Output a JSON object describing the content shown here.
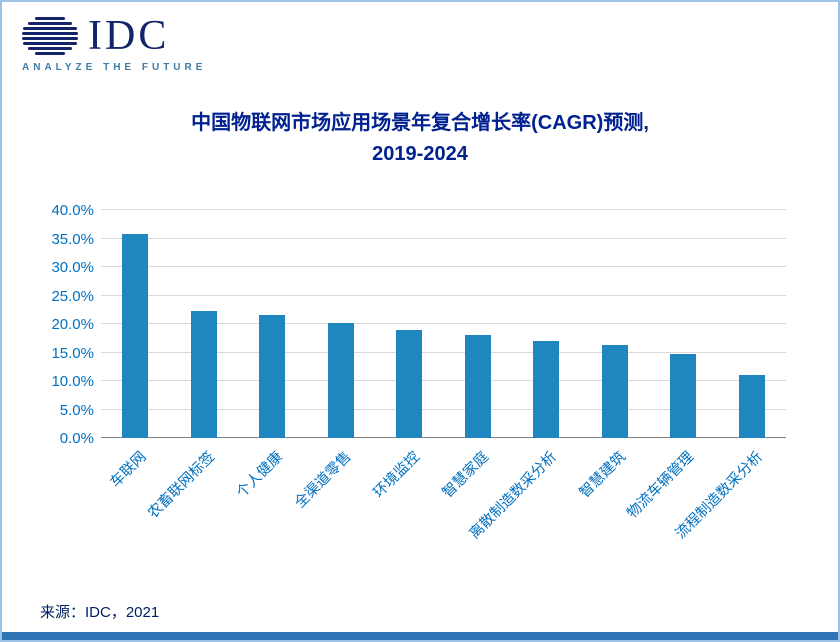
{
  "logo": {
    "text": "IDC",
    "tagline": "ANALYZE THE FUTURE"
  },
  "chart_data": {
    "type": "bar",
    "title_line1": "中国物联网市场应用场景年复合增长率(CAGR)预测,",
    "title_line2": "2019-2024",
    "categories": [
      "车联网",
      "农畜联网标签",
      "个人健康",
      "全渠道零售",
      "环境监控",
      "智慧家庭",
      "离散制造数采分析",
      "智慧建筑",
      "物流车辆管理",
      "流程制造数采分析"
    ],
    "values": [
      35.8,
      22.2,
      21.5,
      20.1,
      19.0,
      18.1,
      17.1,
      16.4,
      14.8,
      11.1
    ],
    "xlabel": "",
    "ylabel": "",
    "ylim": [
      0,
      40
    ],
    "yticks": [
      0,
      5,
      10,
      15,
      20,
      25,
      30,
      35,
      40
    ],
    "grid": "on",
    "legend": "none",
    "bar_color": "#1F86C0"
  },
  "footer": {
    "source": "来源：IDC，2021"
  },
  "colors": {
    "title": "#00218F",
    "axis_labels": "#0070C0",
    "bar": "#1F86C0",
    "border": "#9CC2E5",
    "accent_strip": "#2E74B5",
    "logo_navy": "#14246B",
    "tagline_blue": "#3E7CA6"
  }
}
